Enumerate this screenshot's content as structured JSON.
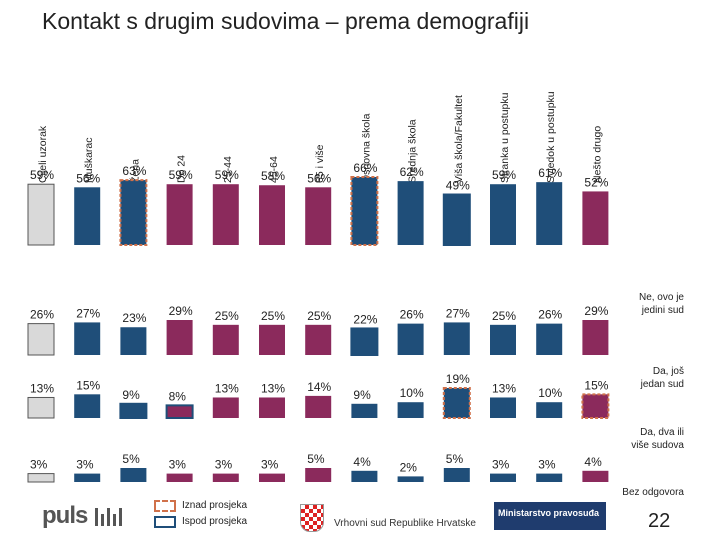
{
  "title": "Kontakt s drugim sudovima – prema demografiji",
  "chart_data": {
    "type": "bar",
    "subtype": "stacked-100-grid",
    "categories": [
      "Cijeli uzorak",
      "Muškarac",
      "Žena",
      "Do 24",
      "25-44",
      "45-64",
      "65 i više",
      "Osnovna škola",
      "Srednja škola",
      "Viša škola/Fakultet",
      "Stranka u postupku",
      "Svjedok u postupku",
      "Nešto drugo"
    ],
    "category_colors": [
      "#d9d9d9",
      "#1f4e79",
      "#1f4e79",
      "#8b2a5c",
      "#8b2a5c",
      "#8b2a5c",
      "#8b2a5c",
      "#1f4e79",
      "#1f4e79",
      "#1f4e79",
      "#1f4e79",
      "#1f4e79",
      "#8b2a5c"
    ],
    "series": [
      {
        "name": "Ne, ovo je jedini sud",
        "values": [
          59,
          56,
          63,
          59,
          59,
          58,
          56,
          66,
          62,
          49,
          59,
          61,
          52
        ],
        "labels": [
          "59%",
          "56%",
          "63%",
          "59%",
          "59%",
          "58%",
          "56%",
          "66%",
          "62%",
          "49%",
          "59%",
          "61%",
          "52%"
        ]
      },
      {
        "name": "Da, još jedan sud",
        "values": [
          26,
          27,
          23,
          29,
          25,
          25,
          25,
          22,
          26,
          27,
          25,
          26,
          29
        ],
        "labels": [
          "26%",
          "27%",
          "23%",
          "29%",
          "25%",
          "25%",
          "25%",
          "22%",
          "26%",
          "27%",
          "25%",
          "26%",
          "29%"
        ]
      },
      {
        "name": "Da, dva ili više sudova",
        "values": [
          13,
          15,
          9,
          8,
          13,
          13,
          14,
          9,
          10,
          19,
          13,
          10,
          15
        ],
        "labels": [
          "13%",
          "15%",
          "9%",
          "8%",
          "13%",
          "13%",
          "14%",
          "9%",
          "10%",
          "19%",
          "13%",
          "10%",
          "15%"
        ]
      },
      {
        "name": "Bez odgovora",
        "values": [
          3,
          3,
          5,
          3,
          3,
          3,
          5,
          4,
          2,
          5,
          3,
          3,
          4
        ],
        "labels": [
          "3%",
          "3%",
          "5%",
          "3%",
          "3%",
          "3%",
          "5%",
          "4%",
          "2%",
          "5%",
          "3%",
          "3%",
          "4%"
        ]
      }
    ],
    "row_labels": [
      "Ne, ovo je jedini sud",
      "Da, još jedan sud",
      "Da, dva ili više sudova",
      "Bez odgovora"
    ],
    "highlights": {
      "above": [
        [
          0,
          2
        ],
        [
          0,
          7
        ],
        [
          2,
          9
        ],
        [
          2,
          12
        ]
      ],
      "below": [
        [
          0,
          9
        ],
        [
          1,
          7
        ],
        [
          2,
          2
        ],
        [
          2,
          3
        ]
      ]
    },
    "legend": [
      "Iznad prosjeka",
      "Ispod prosjeka"
    ]
  },
  "logos": {
    "puls": "puls",
    "court": "Vrhovni sud Republike Hrvatske",
    "ministry": "Ministarstvo pravosuđa"
  },
  "page_number": "22"
}
